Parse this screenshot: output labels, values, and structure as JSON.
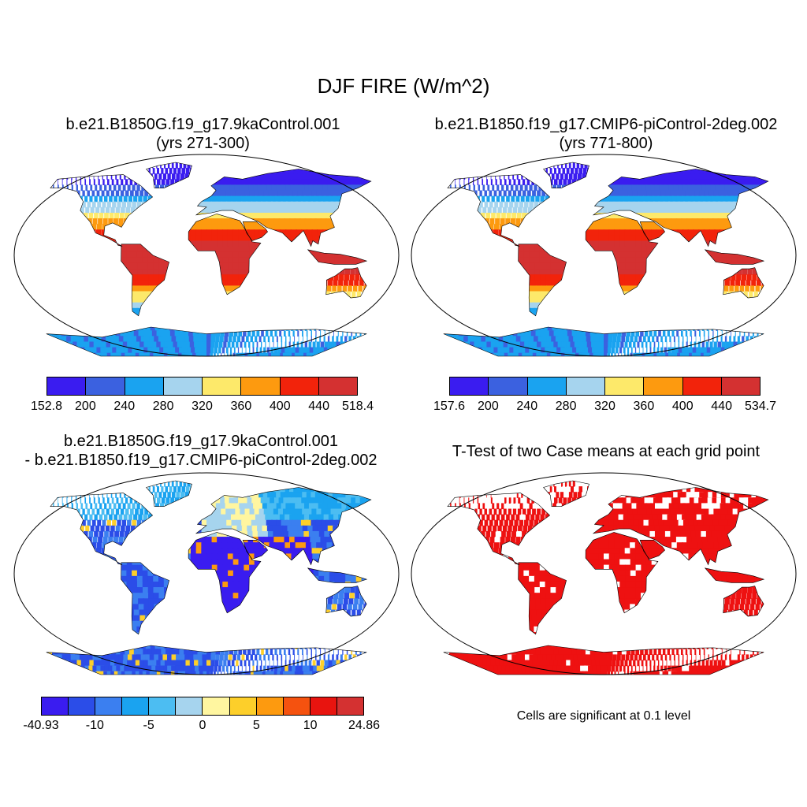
{
  "figure": {
    "title": "DJF FIRE (W/m^2)"
  },
  "panels": [
    {
      "id": "case1",
      "title_lines": [
        "b.e21.B1850G.f19_g17.9kaControl.001",
        "(yrs 271-300)"
      ],
      "colorbar": {
        "colors": [
          "#3a1cf0",
          "#3b61e0",
          "#1aa3f0",
          "#a6d4ee",
          "#fde96a",
          "#fd9a0f",
          "#f2230b",
          "#d43131"
        ],
        "labels": [
          "152.8",
          "200",
          "240",
          "280",
          "320",
          "360",
          "400",
          "440",
          "518.4"
        ]
      }
    },
    {
      "id": "case2",
      "title_lines": [
        "b.e21.B1850.f19_g17.CMIP6-piControl-2deg.002",
        "(yrs 771-800)"
      ],
      "colorbar": {
        "colors": [
          "#3a1cf0",
          "#3b61e0",
          "#1aa3f0",
          "#a6d4ee",
          "#fde96a",
          "#fd9a0f",
          "#f2230b",
          "#d43131"
        ],
        "labels": [
          "157.6",
          "200",
          "240",
          "280",
          "320",
          "360",
          "400",
          "440",
          "534.7"
        ]
      }
    },
    {
      "id": "difference",
      "title_lines": [
        "b.e21.B1850G.f19_g17.9kaControl.001",
        "- b.e21.B1850.f19_g17.CMIP6-piControl-2deg.002"
      ],
      "colorbar": {
        "colors": [
          "#3a1cf0",
          "#2b4de8",
          "#3b7ff0",
          "#1aa3f0",
          "#4cbdf2",
          "#a6d4ee",
          "#fff6a0",
          "#fdcf2a",
          "#fd9a0f",
          "#f5520f",
          "#e8140f",
          "#d43131"
        ],
        "labels": [
          "-40.93",
          "-10",
          "-5",
          "0",
          "5",
          "10",
          "24.86"
        ]
      }
    },
    {
      "id": "ttest",
      "title_lines": [
        "T-Test of two Case means at each grid point"
      ],
      "note": "Cells are significant at 0.1 level"
    }
  ]
}
